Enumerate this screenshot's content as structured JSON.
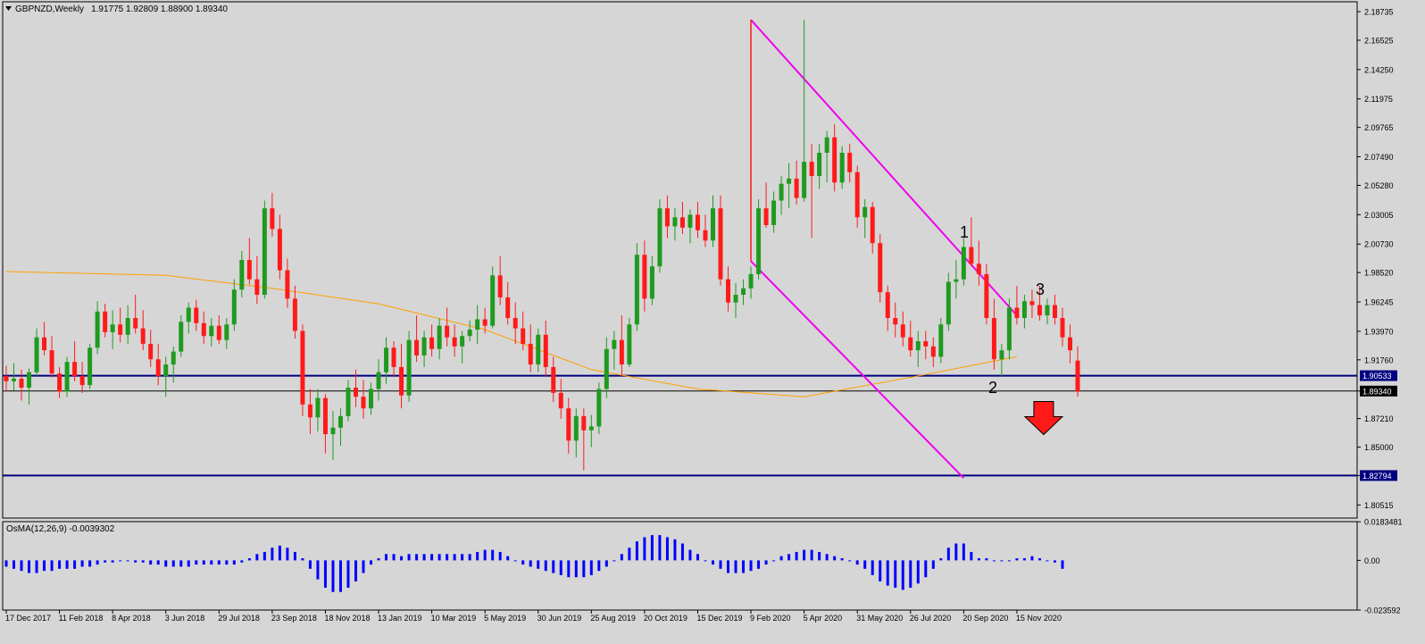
{
  "header": {
    "symbol": "GBPNZD,Weekly",
    "ohlc": "1.91775 1.92809 1.88900 1.89340"
  },
  "colors": {
    "background": "#d6d6d6",
    "bull": "#1f9a1f",
    "bear": "#ff1a1a",
    "ma": "#ffa000",
    "channel": "#ee00ee",
    "levels": "#000080",
    "histogram": "#0000ff",
    "arrow": "#ff1a1a"
  },
  "annotations": {
    "wave1": "1",
    "wave2": "2",
    "wave3": "3"
  },
  "chart_data": [
    {
      "type": "candlestick",
      "title": "GBPNZD,Weekly",
      "ylim": [
        1.795,
        2.195
      ],
      "y_ticks": [
        "2.18735",
        "2.16525",
        "2.14250",
        "2.11975",
        "2.09765",
        "2.07490",
        "2.05280",
        "2.03005",
        "2.00730",
        "1.98520",
        "1.96245",
        "1.93970",
        "1.91760",
        "1.89340",
        "1.87210",
        "1.85000",
        "1.82794",
        "1.80515"
      ],
      "x_ticks": [
        "17 Dec 2017",
        "11 Feb 2018",
        "8 Apr 2018",
        "3 Jun 2018",
        "29 Jul 2018",
        "23 Sep 2018",
        "18 Nov 2018",
        "13 Jan 2019",
        "10 Mar 2019",
        "5 May 2019",
        "30 Jun 2019",
        "25 Aug 2019",
        "20 Oct 2019",
        "15 Dec 2019",
        "9 Feb 2020",
        "5 Apr 2020",
        "31 May 2020",
        "26 Jul 2020",
        "20 Sep 2020",
        "15 Nov 2020"
      ],
      "highlighted_levels": [
        {
          "value": 1.90533,
          "label": "1.90533"
        },
        {
          "value": 1.8934,
          "label": "1.89340"
        },
        {
          "value": 1.82794,
          "label": "1.82794"
        }
      ],
      "moving_average": [
        {
          "date": "17 Dec 2017",
          "value": 1.986
        },
        {
          "date": "3 Jun 2018",
          "value": 1.983
        },
        {
          "date": "23 Sep 2018",
          "value": 1.973
        },
        {
          "date": "13 Jan 2019",
          "value": 1.961
        },
        {
          "date": "5 May 2019",
          "value": 1.941
        },
        {
          "date": "25 Aug 2019",
          "value": 1.91
        },
        {
          "date": "15 Dec 2019",
          "value": 1.895
        },
        {
          "date": "5 Apr 2020",
          "value": 1.889
        },
        {
          "date": "26 Jul 2020",
          "value": 1.904
        },
        {
          "date": "15 Nov 2020",
          "value": 1.92
        }
      ],
      "channel": {
        "upper": [
          {
            "date": "9 Feb 2020",
            "value": 2.181
          },
          {
            "date": "15 Nov 2020",
            "value": 1.952
          }
        ],
        "lower": [
          {
            "date": "9 Feb 2020",
            "value": 1.994
          },
          {
            "date": "20 Sep 2020",
            "value": 1.826
          }
        ],
        "spike_top": 2.181
      },
      "down_arrow_at": {
        "date": "15 Nov 2020",
        "value": 1.868
      },
      "candles": [
        [
          1.905,
          1.913,
          1.893,
          1.901
        ],
        [
          1.901,
          1.915,
          1.894,
          1.903
        ],
        [
          1.903,
          1.91,
          1.886,
          1.896
        ],
        [
          1.896,
          1.911,
          1.883,
          1.908
        ],
        [
          1.908,
          1.942,
          1.905,
          1.935
        ],
        [
          1.935,
          1.947,
          1.921,
          1.925
        ],
        [
          1.925,
          1.936,
          1.904,
          1.907
        ],
        [
          1.907,
          1.912,
          1.888,
          1.893
        ],
        [
          1.893,
          1.92,
          1.889,
          1.916
        ],
        [
          1.916,
          1.932,
          1.901,
          1.905
        ],
        [
          1.905,
          1.916,
          1.892,
          1.898
        ],
        [
          1.898,
          1.93,
          1.895,
          1.927
        ],
        [
          1.927,
          1.963,
          1.922,
          1.955
        ],
        [
          1.955,
          1.961,
          1.935,
          1.939
        ],
        [
          1.939,
          1.956,
          1.926,
          1.945
        ],
        [
          1.945,
          1.958,
          1.931,
          1.937
        ],
        [
          1.937,
          1.96,
          1.93,
          1.95
        ],
        [
          1.95,
          1.968,
          1.938,
          1.942
        ],
        [
          1.942,
          1.956,
          1.925,
          1.93
        ],
        [
          1.93,
          1.941,
          1.912,
          1.918
        ],
        [
          1.918,
          1.93,
          1.898,
          1.905
        ],
        [
          1.905,
          1.92,
          1.889,
          1.914
        ],
        [
          1.914,
          1.928,
          1.9,
          1.924
        ],
        [
          1.924,
          1.952,
          1.92,
          1.947
        ],
        [
          1.947,
          1.962,
          1.938,
          1.958
        ],
        [
          1.958,
          1.964,
          1.94,
          1.946
        ],
        [
          1.946,
          1.955,
          1.93,
          1.936
        ],
        [
          1.936,
          1.95,
          1.928,
          1.944
        ],
        [
          1.944,
          1.952,
          1.93,
          1.933
        ],
        [
          1.933,
          1.95,
          1.926,
          1.945
        ],
        [
          1.945,
          1.98,
          1.94,
          1.972
        ],
        [
          1.972,
          2.002,
          1.966,
          1.995
        ],
        [
          1.995,
          2.012,
          1.976,
          1.98
        ],
        [
          1.98,
          1.998,
          1.961,
          1.968
        ],
        [
          1.968,
          2.041,
          1.965,
          2.035
        ],
        [
          2.035,
          2.047,
          2.013,
          2.019
        ],
        [
          2.019,
          2.03,
          1.98,
          1.987
        ],
        [
          1.987,
          1.996,
          1.958,
          1.965
        ],
        [
          1.965,
          1.975,
          1.934,
          1.94
        ],
        [
          1.94,
          1.945,
          1.874,
          1.883
        ],
        [
          1.883,
          1.895,
          1.86,
          1.873
        ],
        [
          1.873,
          1.895,
          1.862,
          1.888
        ],
        [
          1.888,
          1.891,
          1.845,
          1.86
        ],
        [
          1.86,
          1.878,
          1.84,
          1.865
        ],
        [
          1.865,
          1.88,
          1.851,
          1.874
        ],
        [
          1.874,
          1.902,
          1.87,
          1.896
        ],
        [
          1.896,
          1.91,
          1.881,
          1.889
        ],
        [
          1.889,
          1.902,
          1.872,
          1.88
        ],
        [
          1.88,
          1.9,
          1.875,
          1.895
        ],
        [
          1.895,
          1.918,
          1.886,
          1.908
        ],
        [
          1.908,
          1.935,
          1.899,
          1.927
        ],
        [
          1.927,
          1.932,
          1.905,
          1.912
        ],
        [
          1.912,
          1.93,
          1.88,
          1.89
        ],
        [
          1.89,
          1.94,
          1.885,
          1.933
        ],
        [
          1.933,
          1.952,
          1.916,
          1.921
        ],
        [
          1.921,
          1.94,
          1.912,
          1.935
        ],
        [
          1.935,
          1.945,
          1.92,
          1.926
        ],
        [
          1.926,
          1.95,
          1.918,
          1.944
        ],
        [
          1.944,
          1.958,
          1.928,
          1.935
        ],
        [
          1.935,
          1.945,
          1.92,
          1.928
        ],
        [
          1.928,
          1.94,
          1.915,
          1.936
        ],
        [
          1.936,
          1.948,
          1.932,
          1.941
        ],
        [
          1.941,
          1.96,
          1.93,
          1.949
        ],
        [
          1.949,
          1.958,
          1.938,
          1.944
        ],
        [
          1.944,
          1.99,
          1.942,
          1.983
        ],
        [
          1.983,
          1.998,
          1.96,
          1.966
        ],
        [
          1.966,
          1.978,
          1.945,
          1.95
        ],
        [
          1.95,
          1.962,
          1.93,
          1.942
        ],
        [
          1.942,
          1.955,
          1.925,
          1.93
        ],
        [
          1.93,
          1.945,
          1.908,
          1.914
        ],
        [
          1.914,
          1.942,
          1.908,
          1.937
        ],
        [
          1.937,
          1.948,
          1.905,
          1.912
        ],
        [
          1.912,
          1.92,
          1.885,
          1.892
        ],
        [
          1.892,
          1.903,
          1.872,
          1.88
        ],
        [
          1.88,
          1.888,
          1.845,
          1.855
        ],
        [
          1.855,
          1.88,
          1.842,
          1.874
        ],
        [
          1.874,
          1.88,
          1.832,
          1.863
        ],
        [
          1.863,
          1.875,
          1.85,
          1.866
        ],
        [
          1.866,
          1.9,
          1.86,
          1.895
        ],
        [
          1.895,
          1.935,
          1.888,
          1.926
        ],
        [
          1.926,
          1.94,
          1.91,
          1.933
        ],
        [
          1.933,
          1.952,
          1.905,
          1.914
        ],
        [
          1.914,
          1.95,
          1.912,
          1.945
        ],
        [
          1.945,
          2.008,
          1.94,
          1.999
        ],
        [
          1.999,
          2.01,
          1.955,
          1.965
        ],
        [
          1.965,
          1.998,
          1.96,
          1.99
        ],
        [
          1.99,
          2.042,
          1.985,
          2.035
        ],
        [
          2.035,
          2.045,
          2.012,
          2.021
        ],
        [
          2.021,
          2.035,
          2.01,
          2.028
        ],
        [
          2.028,
          2.04,
          2.015,
          2.02
        ],
        [
          2.02,
          2.034,
          2.008,
          2.03
        ],
        [
          2.03,
          2.04,
          2.012,
          2.018
        ],
        [
          2.018,
          2.03,
          2.005,
          2.01
        ],
        [
          2.01,
          2.045,
          2.005,
          2.035
        ],
        [
          2.035,
          2.045,
          1.975,
          1.98
        ],
        [
          1.98,
          1.99,
          1.955,
          1.962
        ],
        [
          1.962,
          1.977,
          1.95,
          1.968
        ],
        [
          1.968,
          1.98,
          1.96,
          1.973
        ],
        [
          1.973,
          1.99,
          1.965,
          1.984
        ],
        [
          1.984,
          2.042,
          1.98,
          2.035
        ],
        [
          2.035,
          2.055,
          2.02,
          2.022
        ],
        [
          2.022,
          2.048,
          2.016,
          2.041
        ],
        [
          2.041,
          2.06,
          2.03,
          2.054
        ],
        [
          2.054,
          2.07,
          2.035,
          2.058
        ],
        [
          2.058,
          2.072,
          2.038,
          2.043
        ],
        [
          2.043,
          2.181,
          2.04,
          2.071
        ],
        [
          2.071,
          2.085,
          2.012,
          2.06
        ],
        [
          2.06,
          2.085,
          2.05,
          2.078
        ],
        [
          2.078,
          2.095,
          2.055,
          2.09
        ],
        [
          2.09,
          2.1,
          2.048,
          2.055
        ],
        [
          2.055,
          2.083,
          2.05,
          2.078
        ],
        [
          2.078,
          2.085,
          2.055,
          2.063
        ],
        [
          2.063,
          2.068,
          2.02,
          2.028
        ],
        [
          2.028,
          2.042,
          2.012,
          2.036
        ],
        [
          2.036,
          2.04,
          2.0,
          2.008
        ],
        [
          2.008,
          2.015,
          1.962,
          1.97
        ],
        [
          1.97,
          1.975,
          1.94,
          1.95
        ],
        [
          1.95,
          1.962,
          1.935,
          1.945
        ],
        [
          1.945,
          1.955,
          1.928,
          1.935
        ],
        [
          1.935,
          1.948,
          1.92,
          1.925
        ],
        [
          1.925,
          1.94,
          1.912,
          1.932
        ],
        [
          1.932,
          1.94,
          1.918,
          1.928
        ],
        [
          1.928,
          1.935,
          1.912,
          1.92
        ],
        [
          1.92,
          1.95,
          1.915,
          1.945
        ],
        [
          1.945,
          1.985,
          1.94,
          1.978
        ],
        [
          1.978,
          1.995,
          1.965,
          1.98
        ],
        [
          1.98,
          2.012,
          1.975,
          2.005
        ],
        [
          2.005,
          2.028,
          1.99,
          1.992
        ],
        [
          1.992,
          2.01,
          1.975,
          1.984
        ],
        [
          1.984,
          1.992,
          1.945,
          1.95
        ],
        [
          1.95,
          1.965,
          1.91,
          1.918
        ],
        [
          1.918,
          1.93,
          1.905,
          1.925
        ],
        [
          1.925,
          1.965,
          1.918,
          1.958
        ],
        [
          1.958,
          1.975,
          1.945,
          1.95
        ],
        [
          1.95,
          1.968,
          1.942,
          1.963
        ],
        [
          1.963,
          1.972,
          1.95,
          1.96
        ],
        [
          1.96,
          1.975,
          1.948,
          1.952
        ],
        [
          1.952,
          1.965,
          1.945,
          1.96
        ],
        [
          1.96,
          1.968,
          1.945,
          1.95
        ],
        [
          1.95,
          1.958,
          1.928,
          1.935
        ],
        [
          1.935,
          1.945,
          1.915,
          1.925
        ],
        [
          1.917,
          1.928,
          1.889,
          1.893
        ]
      ]
    },
    {
      "type": "bar",
      "title": "OsMA(12,26,9) -0.0039302",
      "ylim": [
        -0.0236,
        0.0184
      ],
      "y_ticks": [
        "0.0183481",
        "0.00",
        "-0.023592"
      ],
      "values": [
        -0.003,
        -0.004,
        -0.005,
        -0.006,
        -0.006,
        -0.005,
        -0.005,
        -0.004,
        -0.004,
        -0.004,
        -0.003,
        -0.003,
        -0.002,
        -0.001,
        -0.001,
        0.0,
        0.0,
        -0.001,
        -0.001,
        -0.002,
        -0.002,
        -0.003,
        -0.003,
        -0.003,
        -0.003,
        -0.002,
        -0.002,
        -0.002,
        -0.002,
        -0.002,
        -0.002,
        -0.001,
        0.001,
        0.003,
        0.004,
        0.006,
        0.007,
        0.006,
        0.004,
        0.001,
        -0.004,
        -0.009,
        -0.013,
        -0.015,
        -0.015,
        -0.013,
        -0.01,
        -0.006,
        -0.002,
        0.001,
        0.003,
        0.003,
        0.002,
        0.003,
        0.003,
        0.003,
        0.003,
        0.003,
        0.003,
        0.003,
        0.003,
        0.003,
        0.004,
        0.005,
        0.005,
        0.004,
        0.002,
        0.0,
        -0.002,
        -0.003,
        -0.004,
        -0.005,
        -0.006,
        -0.007,
        -0.008,
        -0.008,
        -0.008,
        -0.007,
        -0.005,
        -0.003,
        0.0,
        0.003,
        0.006,
        0.009,
        0.011,
        0.012,
        0.012,
        0.011,
        0.01,
        0.008,
        0.005,
        0.003,
        0.0,
        -0.002,
        -0.004,
        -0.006,
        -0.006,
        -0.006,
        -0.005,
        -0.004,
        -0.002,
        0.0,
        0.002,
        0.003,
        0.004,
        0.005,
        0.005,
        0.004,
        0.003,
        0.002,
        0.001,
        0.0,
        -0.002,
        -0.004,
        -0.007,
        -0.01,
        -0.012,
        -0.013,
        -0.014,
        -0.013,
        -0.011,
        -0.008,
        -0.004,
        0.001,
        0.006,
        0.008,
        0.008,
        0.004,
        0.001,
        0.001,
        0.0,
        0.0,
        0.0,
        0.001,
        0.001,
        0.002,
        0.001,
        0.0,
        -0.001,
        -0.004
      ]
    }
  ]
}
